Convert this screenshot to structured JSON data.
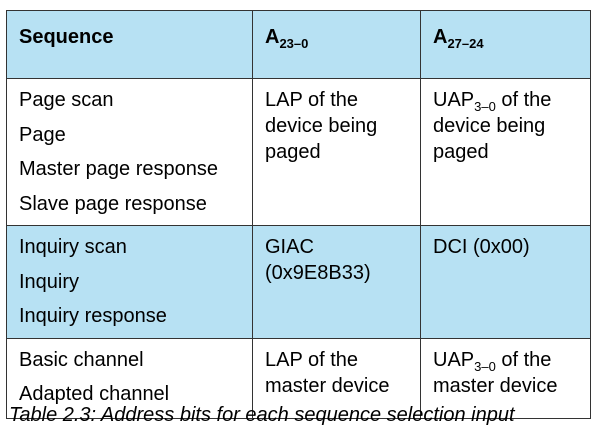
{
  "table": {
    "headers": {
      "sequence": "Sequence",
      "a_low_main": "A",
      "a_low_sub": "23–0",
      "a_high_main": "A",
      "a_high_sub": "27–24"
    },
    "rows": [
      {
        "sequences": [
          "Page scan",
          "Page",
          "Master page response",
          "Slave page response"
        ],
        "a_low": "LAP of the device being paged",
        "a_high_main": "UAP",
        "a_high_sub": "3–0",
        "a_high_rest": " of the device being paged",
        "shaded": false
      },
      {
        "sequences": [
          "Inquiry scan",
          "Inquiry",
          "Inquiry response"
        ],
        "a_low": "GIAC (0x9E8B33)",
        "a_high_text": "DCI (0x00)",
        "shaded": true
      },
      {
        "sequences": [
          "Basic channel",
          "Adapted channel"
        ],
        "a_low": "LAP of the master device",
        "a_high_main": "UAP",
        "a_high_sub": "3–0",
        "a_high_rest": " of the master device",
        "shaded": false
      }
    ]
  },
  "caption": "Table 2.3:  Address bits for each sequence selection input",
  "colors": {
    "header_bg": "#b7e1f3",
    "border": "#333333"
  }
}
